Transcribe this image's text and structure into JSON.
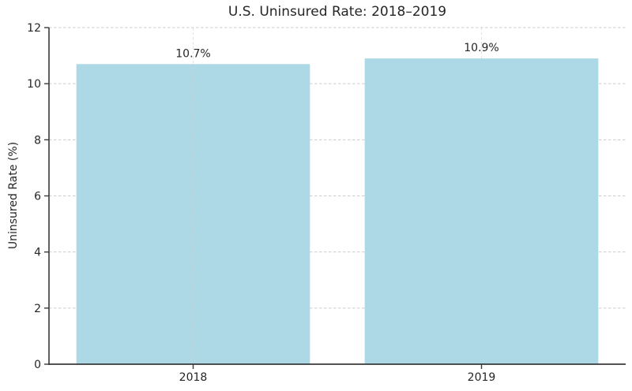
{
  "chart_data": {
    "type": "bar",
    "title": "U.S. Uninsured Rate: 2018–2019",
    "xlabel": "",
    "ylabel": "Uninsured Rate (%)",
    "categories": [
      "2018",
      "2019"
    ],
    "values": [
      10.7,
      10.9
    ],
    "bar_labels": [
      "10.7%",
      "10.9%"
    ],
    "ylim": [
      0,
      12
    ],
    "yticks": [
      0,
      2,
      4,
      6,
      8,
      10,
      12
    ],
    "grid": "dashed horizontal and vertical at bar centers",
    "legend_position": "none",
    "colors": {
      "bar_fill": "#ADD8E6",
      "grid_line": "#cccccc",
      "axis_line": "#3a3a3a",
      "text": "#262626"
    }
  }
}
